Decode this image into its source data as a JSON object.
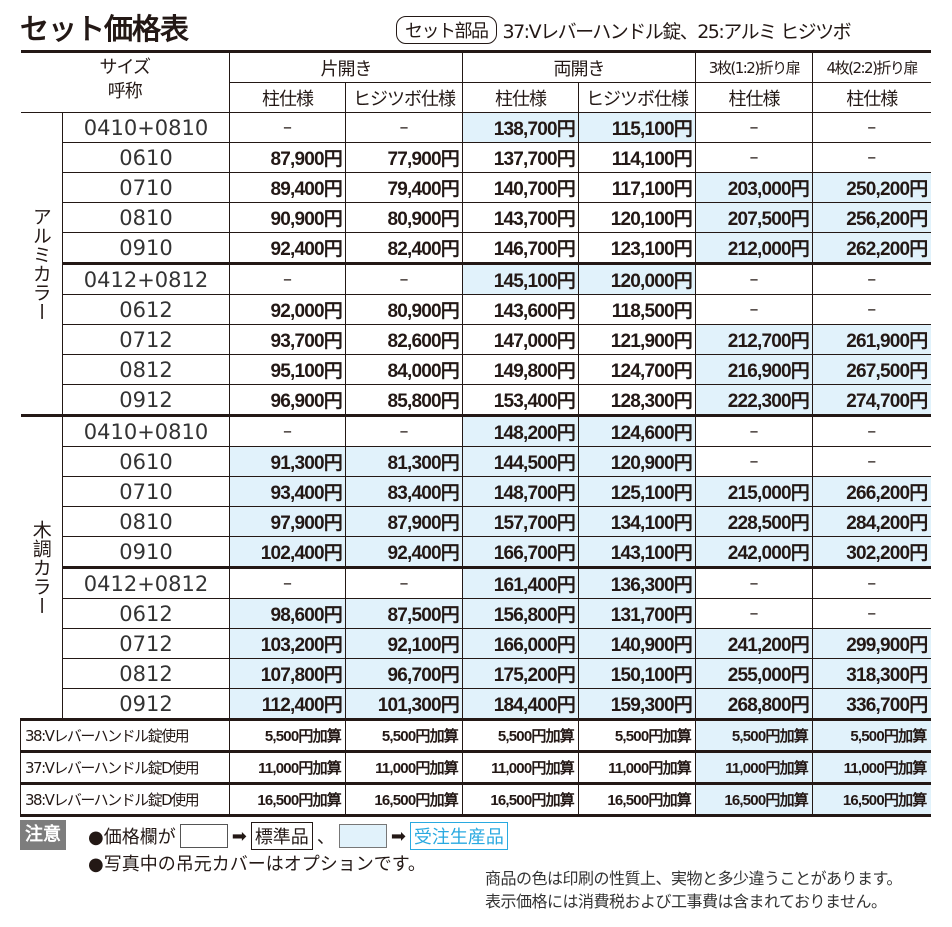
{
  "title": "セット価格表",
  "set_parts": {
    "label": "セット部品",
    "text": "37:Vレバーハンドル錠、25:アルミ ヒジツボ"
  },
  "header": {
    "size_label": "サイズ\n呼称",
    "groups": [
      "片開き",
      "両開き",
      "3枚(1:2)折り扉",
      "4枚(2:2)折り扉"
    ],
    "subcols": [
      "柱仕様",
      "ヒジツボ仕様",
      "柱仕様",
      "ヒジツボ仕様",
      "柱仕様",
      "柱仕様"
    ]
  },
  "sections": [
    {
      "label": "アルミカラー",
      "rows": [
        {
          "size": "0410+0810",
          "cells": [
            "–",
            "–",
            "138,700円",
            "115,100円",
            "–",
            "–"
          ],
          "shaded": [
            false,
            false,
            true,
            true,
            false,
            false
          ]
        },
        {
          "size": "0610",
          "cells": [
            "87,900円",
            "77,900円",
            "137,700円",
            "114,100円",
            "–",
            "–"
          ],
          "shaded": [
            false,
            false,
            false,
            false,
            false,
            false
          ]
        },
        {
          "size": "0710",
          "cells": [
            "89,400円",
            "79,400円",
            "140,700円",
            "117,100円",
            "203,000円",
            "250,200円"
          ],
          "shaded": [
            false,
            false,
            false,
            false,
            true,
            true
          ]
        },
        {
          "size": "0810",
          "cells": [
            "90,900円",
            "80,900円",
            "143,700円",
            "120,100円",
            "207,500円",
            "256,200円"
          ],
          "shaded": [
            false,
            false,
            false,
            false,
            true,
            true
          ]
        },
        {
          "size": "0910",
          "cells": [
            "92,400円",
            "82,400円",
            "146,700円",
            "123,100円",
            "212,000円",
            "262,200円"
          ],
          "shaded": [
            false,
            false,
            false,
            false,
            true,
            true
          ]
        },
        {
          "size": "0412+0812",
          "cells": [
            "–",
            "–",
            "145,100円",
            "120,000円",
            "–",
            "–"
          ],
          "shaded": [
            false,
            false,
            true,
            true,
            false,
            false
          ]
        },
        {
          "size": "0612",
          "cells": [
            "92,000円",
            "80,900円",
            "143,600円",
            "118,500円",
            "–",
            "–"
          ],
          "shaded": [
            false,
            false,
            false,
            false,
            false,
            false
          ]
        },
        {
          "size": "0712",
          "cells": [
            "93,700円",
            "82,600円",
            "147,000円",
            "121,900円",
            "212,700円",
            "261,900円"
          ],
          "shaded": [
            false,
            false,
            false,
            false,
            true,
            true
          ]
        },
        {
          "size": "0812",
          "cells": [
            "95,100円",
            "84,000円",
            "149,800円",
            "124,700円",
            "216,900円",
            "267,500円"
          ],
          "shaded": [
            false,
            false,
            false,
            false,
            true,
            true
          ]
        },
        {
          "size": "0912",
          "cells": [
            "96,900円",
            "85,800円",
            "153,400円",
            "128,300円",
            "222,300円",
            "274,700円"
          ],
          "shaded": [
            false,
            false,
            false,
            false,
            true,
            true
          ]
        }
      ]
    },
    {
      "label": "木調カラー",
      "rows": [
        {
          "size": "0410+0810",
          "cells": [
            "–",
            "–",
            "148,200円",
            "124,600円",
            "–",
            "–"
          ],
          "shaded": [
            false,
            false,
            true,
            true,
            false,
            false
          ]
        },
        {
          "size": "0610",
          "cells": [
            "91,300円",
            "81,300円",
            "144,500円",
            "120,900円",
            "–",
            "–"
          ],
          "shaded": [
            true,
            true,
            true,
            true,
            false,
            false
          ]
        },
        {
          "size": "0710",
          "cells": [
            "93,400円",
            "83,400円",
            "148,700円",
            "125,100円",
            "215,000円",
            "266,200円"
          ],
          "shaded": [
            true,
            true,
            true,
            true,
            true,
            true
          ]
        },
        {
          "size": "0810",
          "cells": [
            "97,900円",
            "87,900円",
            "157,700円",
            "134,100円",
            "228,500円",
            "284,200円"
          ],
          "shaded": [
            true,
            true,
            true,
            true,
            true,
            true
          ]
        },
        {
          "size": "0910",
          "cells": [
            "102,400円",
            "92,400円",
            "166,700円",
            "143,100円",
            "242,000円",
            "302,200円"
          ],
          "shaded": [
            true,
            true,
            true,
            true,
            true,
            true
          ]
        },
        {
          "size": "0412+0812",
          "cells": [
            "–",
            "–",
            "161,400円",
            "136,300円",
            "–",
            "–"
          ],
          "shaded": [
            false,
            false,
            true,
            true,
            false,
            false
          ]
        },
        {
          "size": "0612",
          "cells": [
            "98,600円",
            "87,500円",
            "156,800円",
            "131,700円",
            "–",
            "–"
          ],
          "shaded": [
            true,
            true,
            true,
            true,
            false,
            false
          ]
        },
        {
          "size": "0712",
          "cells": [
            "103,200円",
            "92,100円",
            "166,000円",
            "140,900円",
            "241,200円",
            "299,900円"
          ],
          "shaded": [
            true,
            true,
            true,
            true,
            true,
            true
          ]
        },
        {
          "size": "0812",
          "cells": [
            "107,800円",
            "96,700円",
            "175,200円",
            "150,100円",
            "255,000円",
            "318,300円"
          ],
          "shaded": [
            true,
            true,
            true,
            true,
            true,
            true
          ]
        },
        {
          "size": "0912",
          "cells": [
            "112,400円",
            "101,300円",
            "184,400円",
            "159,300円",
            "268,800円",
            "336,700円"
          ],
          "shaded": [
            true,
            true,
            true,
            true,
            true,
            true
          ]
        }
      ]
    }
  ],
  "extras": [
    {
      "label": "38:Vレバーハンドル錠使用",
      "cells": [
        "5,500円加算",
        "5,500円加算",
        "5,500円加算",
        "5,500円加算",
        "5,500円加算",
        "5,500円加算"
      ],
      "shaded": [
        false,
        false,
        false,
        false,
        true,
        true
      ]
    },
    {
      "label": "37:Vレバーハンドル錠D使用",
      "cells": [
        "11,000円加算",
        "11,000円加算",
        "11,000円加算",
        "11,000円加算",
        "11,000円加算",
        "11,000円加算"
      ],
      "shaded": [
        false,
        false,
        false,
        false,
        true,
        true
      ]
    },
    {
      "label": "38:Vレバーハンドル錠D使用",
      "cells": [
        "16,500円加算",
        "16,500円加算",
        "16,500円加算",
        "16,500円加算",
        "16,500円加算",
        "16,500円加算"
      ],
      "shaded": [
        false,
        false,
        false,
        false,
        true,
        true
      ]
    }
  ],
  "notes": {
    "caution": "注意",
    "price_field_prefix": "●価格欄が",
    "arrow": "➡",
    "standard": "標準品",
    "comma": "、",
    "made_to_order": "受注生産品",
    "option_note": "●写真中の吊元カバーはオプションです。",
    "shaded_color": "#e1f2fb",
    "made_to_order_color": "#29a9e0"
  },
  "disclaimer": [
    "商品の色は印刷の性質上、実物と多少違うことがあります。",
    "表示価格には消費税および工事費は含まれておりません。"
  ]
}
